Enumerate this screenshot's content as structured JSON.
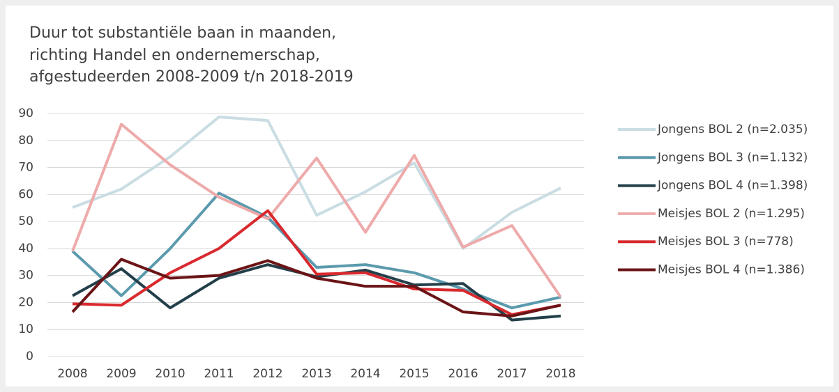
{
  "chart_data": {
    "type": "line",
    "title": [
      "Duur tot substantiële baan in maanden,",
      "richting Handel en ondernemerschap,",
      "afgestudeerden 2008-2009 t/n 2018-2019"
    ],
    "x": [
      2008,
      2009,
      2010,
      2011,
      2012,
      2013,
      2014,
      2015,
      2016,
      2017,
      2018
    ],
    "ylim": [
      0,
      90
    ],
    "yticks": [
      0,
      10,
      20,
      30,
      40,
      50,
      60,
      70,
      80,
      90
    ],
    "grid": true,
    "legend": "right",
    "series": [
      {
        "name": "Jongens BOL 2 (n=2.035)",
        "color": "#c9dde3",
        "values": [
          55.2,
          62,
          74,
          88.7,
          87.4,
          52.3,
          61,
          71.7,
          40,
          53.4,
          62.4
        ]
      },
      {
        "name": "Jongens BOL 3 (n=1.132)",
        "color": "#5b9aad",
        "values": [
          39,
          22.5,
          40,
          60.5,
          51.5,
          33,
          34,
          31,
          25,
          18,
          22
        ]
      },
      {
        "name": "Jongens BOL 4 (n=1.398)",
        "color": "#233f4a",
        "values": [
          22.5,
          32.5,
          18,
          29,
          34,
          29.5,
          32,
          26.5,
          27,
          13.5,
          15
        ]
      },
      {
        "name": "Meisjes BOL 2 (n=1.295)",
        "color": "#eeaaaa",
        "values": [
          39,
          86,
          71,
          59,
          51,
          73.5,
          46,
          74.5,
          40.5,
          48.5,
          22
        ]
      },
      {
        "name": "Meisjes BOL 3 (n=778)",
        "color": "#d9292e",
        "values": [
          19.5,
          19,
          31,
          40,
          54,
          30.5,
          31,
          25,
          24.5,
          15.5,
          19
        ]
      },
      {
        "name": "Meisjes BOL 4 (n=1.386)",
        "color": "#6b1416",
        "values": [
          16.5,
          36,
          29,
          30,
          35.5,
          29,
          26,
          26,
          16.5,
          15,
          19
        ]
      }
    ]
  }
}
